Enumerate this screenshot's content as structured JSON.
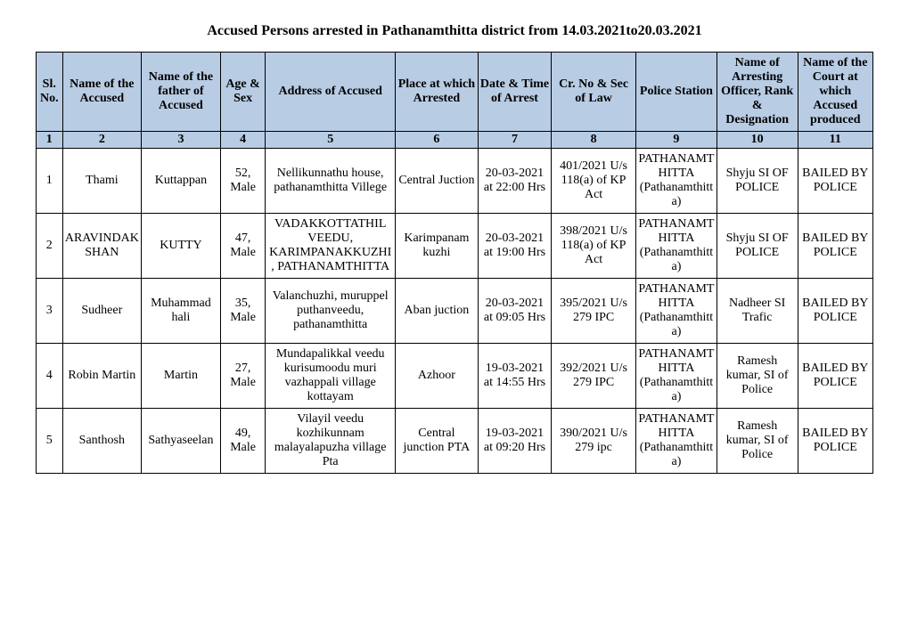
{
  "title": "Accused Persons arrested in   Pathanamthitta  district from   14.03.2021to20.03.2021",
  "table": {
    "columns": [
      "Sl. No.",
      "Name of the Accused",
      "Name of the father of Accused",
      "Age & Sex",
      "Address of Accused",
      "Place at which Arrested",
      "Date & Time of Arrest",
      "Cr. No & Sec of Law",
      "Police Station",
      "Name of Arresting Officer, Rank & Designation",
      "Name of the Court at which Accused produced"
    ],
    "col_numbers": [
      "1",
      "2",
      "3",
      "4",
      "5",
      "6",
      "7",
      "8",
      "9",
      "10",
      "11"
    ],
    "rows": [
      {
        "sl": "1",
        "name": "Thami",
        "father": "Kuttappan",
        "age_sex": "52, Male",
        "address": "Nellikunnathu house, pathanamthitta Villege",
        "place": "Central Juction",
        "datetime": "20-03-2021 at 22:00 Hrs",
        "cr": "401/2021 U/s 118(a) of KP Act",
        "station": "PATHANAMTHITTA (Pathanamthitta)",
        "officer": "Shyju SI OF POLICE",
        "court": "BAILED BY POLICE"
      },
      {
        "sl": "2",
        "name": "ARAVINDAKSHAN",
        "father": "KUTTY",
        "age_sex": "47, Male",
        "address": "VADAKKOTTATHIL VEEDU, KARIMPANAKKUZHI, PATHANAMTHITTA",
        "place": "Karimpanam kuzhi",
        "datetime": "20-03-2021 at 19:00 Hrs",
        "cr": "398/2021 U/s 118(a) of KP Act",
        "station": "PATHANAMTHITTA (Pathanamthitta)",
        "officer": "Shyju SI OF POLICE",
        "court": "BAILED BY POLICE"
      },
      {
        "sl": "3",
        "name": "Sudheer",
        "father": "Muhammad hali",
        "age_sex": "35, Male",
        "address": "Valanchuzhi, muruppel puthanveedu, pathanamthitta",
        "place": "Aban juction",
        "datetime": "20-03-2021 at 09:05 Hrs",
        "cr": "395/2021 U/s 279 IPC",
        "station": "PATHANAMTHITTA (Pathanamthitta)",
        "officer": "Nadheer SI Trafic",
        "court": "BAILED BY POLICE"
      },
      {
        "sl": "4",
        "name": "Robin Martin",
        "father": "Martin",
        "age_sex": "27, Male",
        "address": "Mundapalikkal veedu kurisumoodu muri vazhappali village kottayam",
        "place": "Azhoor",
        "datetime": "19-03-2021 at 14:55 Hrs",
        "cr": "392/2021 U/s 279 IPC",
        "station": "PATHANAMTHITTA (Pathanamthitta)",
        "officer": "Ramesh kumar, SI of Police",
        "court": "BAILED BY POLICE"
      },
      {
        "sl": "5",
        "name": "Santhosh",
        "father": "Sathyaseelan",
        "age_sex": "49, Male",
        "address": "Vilayil veedu kozhikunnam malayalapuzha village Pta",
        "place": "Central junction PTA",
        "datetime": "19-03-2021 at 09:20 Hrs",
        "cr": "390/2021 U/s 279 ipc",
        "station": "PATHANAMTHITTA (Pathanamthitta)",
        "officer": "Ramesh kumar, SI of Police",
        "court": "BAILED BY POLICE"
      }
    ]
  }
}
